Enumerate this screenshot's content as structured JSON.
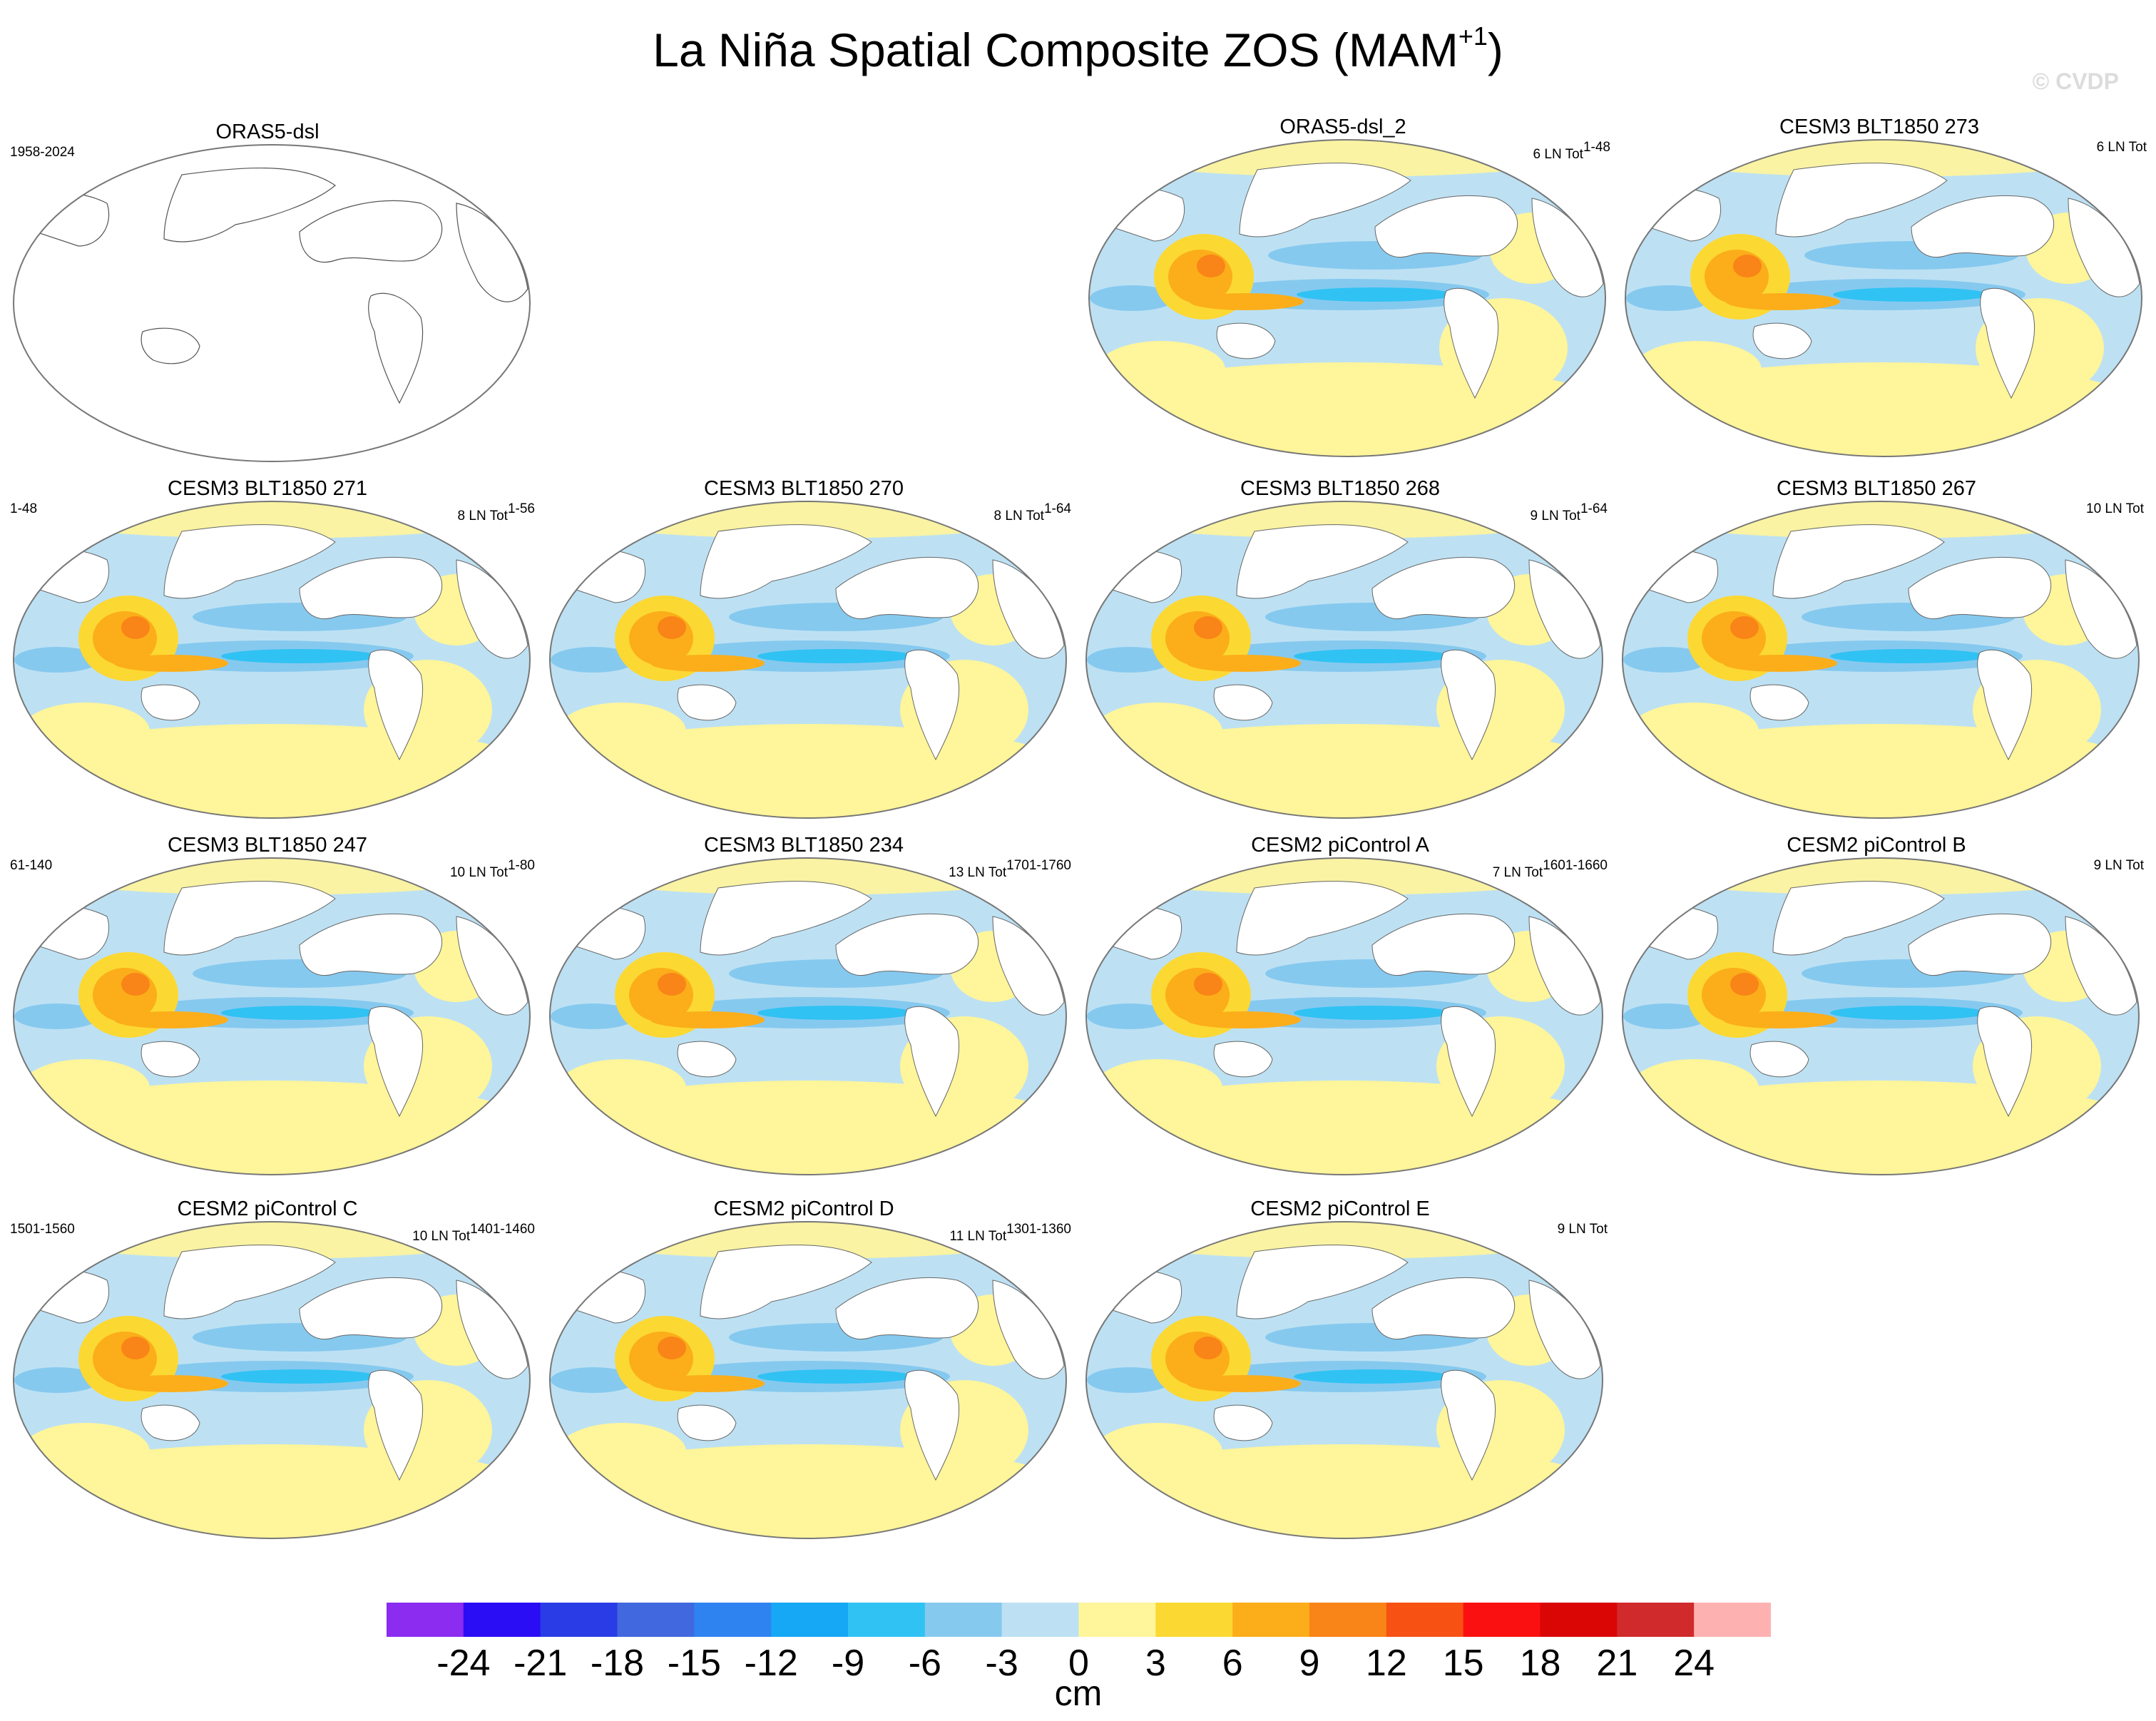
{
  "figure": {
    "title": "La Niña Spatial Composite ZOS (MAM",
    "title_superscript": "+1",
    "title_close": ")",
    "watermark": "© CVDP"
  },
  "chart_data": {
    "type": "map-composite",
    "variable": "ZOS",
    "season": "MAM+1",
    "projection": "Robinson (Pacific-centered)",
    "panels": [
      {
        "name": "ORAS5-dsl",
        "left": "1958-2024",
        "right": "",
        "right_sup": "",
        "empty": true
      },
      {
        "name": "ORAS5-dsl_2",
        "left": "",
        "right": "6 LN Tot",
        "right_sup": "1-48",
        "empty": false
      },
      {
        "name": "CESM3 BLT1850 273",
        "left": "",
        "right": "6 LN Tot",
        "right_sup": "",
        "empty": false
      },
      {
        "name": "CESM3 BLT1850 271",
        "left": "1-48",
        "right": "8 LN Tot",
        "right_sup": "1-56",
        "empty": false
      },
      {
        "name": "CESM3 BLT1850 270",
        "left": "",
        "right": "8 LN Tot",
        "right_sup": "1-64",
        "empty": false
      },
      {
        "name": "CESM3 BLT1850 268",
        "left": "",
        "right": "9 LN Tot",
        "right_sup": "1-64",
        "empty": false
      },
      {
        "name": "CESM3 BLT1850 267",
        "left": "",
        "right": "10 LN Tot",
        "right_sup": "",
        "empty": false
      },
      {
        "name": "CESM3 BLT1850 247",
        "left": "61-140",
        "right": "10 LN Tot",
        "right_sup": "1-80",
        "empty": false
      },
      {
        "name": "CESM3 BLT1850 234",
        "left": "",
        "right": "13 LN Tot",
        "right_sup": "1701-1760",
        "empty": false
      },
      {
        "name": "CESM2 piControl A",
        "left": "",
        "right": "7 LN Tot",
        "right_sup": "1601-1660",
        "empty": false
      },
      {
        "name": "CESM2 piControl B",
        "left": "",
        "right": "9 LN Tot",
        "right_sup": "",
        "empty": false
      },
      {
        "name": "CESM2 piControl C",
        "left": "1501-1560",
        "right": "10 LN Tot",
        "right_sup": "1401-1460",
        "empty": false
      },
      {
        "name": "CESM2 piControl D",
        "left": "",
        "right": "11 LN Tot",
        "right_sup": "1301-1360",
        "empty": false
      },
      {
        "name": "CESM2 piControl E",
        "left": "",
        "right": "9 LN Tot",
        "right_sup": "",
        "empty": false
      }
    ],
    "colorbar": {
      "units": "cm",
      "tick_labels": [
        "-24",
        "-21",
        "-18",
        "-15",
        "-12",
        "-9",
        "-6",
        "-3",
        "0",
        "3",
        "6",
        "9",
        "12",
        "15",
        "18",
        "21",
        "24"
      ],
      "colors": [
        "#8b2cf0",
        "#2a0cf5",
        "#2a3ce6",
        "#4168de",
        "#2f83f0",
        "#16a7f5",
        "#30c2f3",
        "#86c9ef",
        "#bde1f3",
        "#fff59a",
        "#fcd833",
        "#fbae1a",
        "#f98417",
        "#f75114",
        "#fa1010",
        "#da0606",
        "#d02a2c",
        "#fdb2b1"
      ]
    }
  }
}
